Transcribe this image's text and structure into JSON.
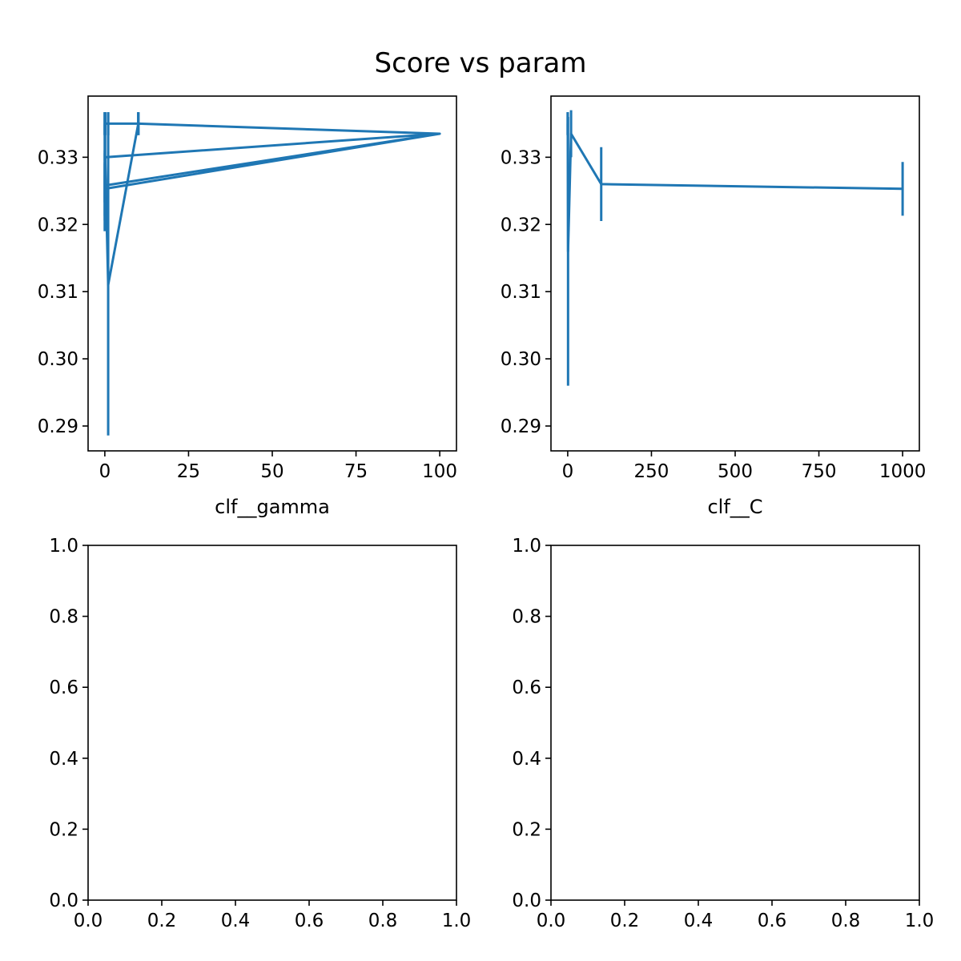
{
  "figure": {
    "title": "Score vs param"
  },
  "chart_data": [
    {
      "type": "line",
      "subtype": "errorbar",
      "title": "",
      "xlabel": "clf__gamma",
      "ylabel": "",
      "xlim": [
        -4.995,
        104.995
      ],
      "ylim": [
        0.2863,
        0.3391
      ],
      "xticks": [
        0,
        25,
        50,
        75,
        100
      ],
      "xtick_labels": [
        "0",
        "25",
        "50",
        "75",
        "100"
      ],
      "yticks": [
        0.29,
        0.3,
        0.31,
        0.32,
        0.33
      ],
      "ytick_labels": [
        "0.29",
        "0.30",
        "0.31",
        "0.32",
        "0.33"
      ],
      "grid": false,
      "legend": "none",
      "color": "#1f77b4",
      "series": [
        {
          "x": [
            0.0001,
            0.001,
            0.01,
            0.1,
            1,
            10,
            100,
            0.0001,
            0.001,
            0.01,
            0.1,
            1,
            10,
            100,
            0.0001,
            0.001,
            0.01,
            0.1,
            1,
            10,
            100,
            0.0001,
            0.001,
            0.01,
            0.1,
            1,
            10,
            100
          ],
          "y": [
            0.335,
            0.335,
            0.335,
            0.335,
            0.335,
            0.335,
            0.3335,
            0.33,
            0.335,
            0.335,
            0.335,
            0.335,
            0.335,
            0.3335,
            0.3258,
            0.3248,
            0.333,
            0.335,
            0.335,
            0.335,
            0.3335,
            0.3253,
            0.324,
            0.3233,
            0.33,
            0.311,
            0.335,
            0.3335
          ],
          "yerr": [
            0.0017,
            0.0017,
            0.0017,
            0.0017,
            0.0017,
            0.0017,
            0.0,
            0.0067,
            0.0017,
            0.0017,
            0.0017,
            0.0017,
            0.0017,
            0.0,
            0.0052,
            0.0058,
            0.0035,
            0.0017,
            0.0017,
            0.0017,
            0.0,
            0.004,
            0.005,
            0.004,
            0.006,
            0.0224,
            0.0017,
            0.0
          ]
        }
      ]
    },
    {
      "type": "line",
      "subtype": "errorbar",
      "title": "",
      "xlabel": "clf__C",
      "ylabel": "",
      "xlim": [
        -49.9995,
        1049.999
      ],
      "ylim": [
        0.2863,
        0.3391
      ],
      "xticks": [
        0,
        250,
        500,
        750,
        1000
      ],
      "xtick_labels": [
        "0",
        "250",
        "500",
        "750",
        "1000"
      ],
      "yticks": [
        0.29,
        0.3,
        0.31,
        0.32,
        0.33
      ],
      "ytick_labels": [
        "0.29",
        "0.30",
        "0.31",
        "0.32",
        "0.33"
      ],
      "grid": false,
      "legend": "none",
      "color": "#1f77b4",
      "series": [
        {
          "x": [
            0.001,
            0.01,
            0.1,
            1,
            10,
            100,
            1000
          ],
          "y": [
            0.335,
            0.335,
            0.335,
            0.316,
            0.3335,
            0.326,
            0.3253
          ],
          "yerr": [
            0.0017,
            0.0017,
            0.0017,
            0.02,
            0.0035,
            0.0055,
            0.004
          ]
        }
      ]
    },
    {
      "type": "line",
      "title": "",
      "xlabel": "",
      "ylabel": "",
      "xlim": [
        0,
        1
      ],
      "ylim": [
        0,
        1
      ],
      "xticks": [
        0.0,
        0.2,
        0.4,
        0.6,
        0.8,
        1.0
      ],
      "xtick_labels": [
        "0.0",
        "0.2",
        "0.4",
        "0.6",
        "0.8",
        "1.0"
      ],
      "yticks": [
        0.0,
        0.2,
        0.4,
        0.6,
        0.8,
        1.0
      ],
      "ytick_labels": [
        "0.0",
        "0.2",
        "0.4",
        "0.6",
        "0.8",
        "1.0"
      ],
      "grid": false,
      "legend": "none",
      "series": []
    },
    {
      "type": "line",
      "title": "",
      "xlabel": "",
      "ylabel": "",
      "xlim": [
        0,
        1
      ],
      "ylim": [
        0,
        1
      ],
      "xticks": [
        0.0,
        0.2,
        0.4,
        0.6,
        0.8,
        1.0
      ],
      "xtick_labels": [
        "0.0",
        "0.2",
        "0.4",
        "0.6",
        "0.8",
        "1.0"
      ],
      "yticks": [
        0.0,
        0.2,
        0.4,
        0.6,
        0.8,
        1.0
      ],
      "ytick_labels": [
        "0.0",
        "0.2",
        "0.4",
        "0.6",
        "0.8",
        "1.0"
      ],
      "grid": false,
      "legend": "none",
      "series": []
    }
  ]
}
